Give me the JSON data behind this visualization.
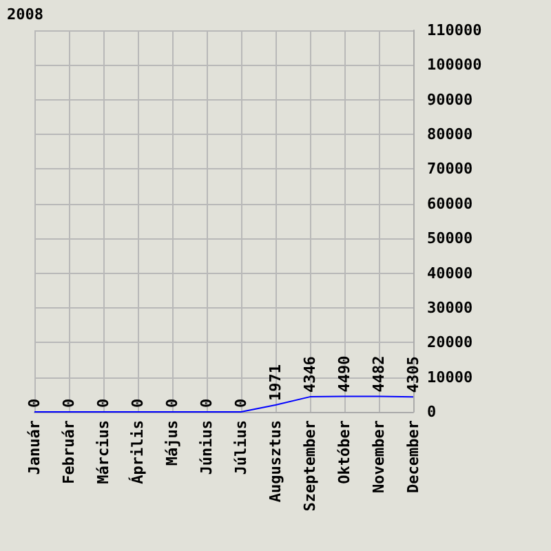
{
  "chart_data": {
    "type": "line",
    "title": "2008",
    "categories": [
      "Január",
      "Február",
      "Március",
      "Április",
      "Május",
      "Június",
      "Július",
      "Augusztus",
      "Szeptember",
      "Október",
      "November",
      "December"
    ],
    "series": [
      {
        "color": "#0000ff",
        "values": [
          0,
          0,
          0,
          0,
          0,
          0,
          0,
          1971,
          4346,
          4490,
          4482,
          4305
        ]
      }
    ],
    "ylim": [
      0,
      110000
    ],
    "yticks": [
      0,
      10000,
      20000,
      30000,
      40000,
      50000,
      60000,
      70000,
      80000,
      90000,
      100000,
      110000
    ],
    "grid": true,
    "data_labels": true,
    "marker": "none"
  }
}
